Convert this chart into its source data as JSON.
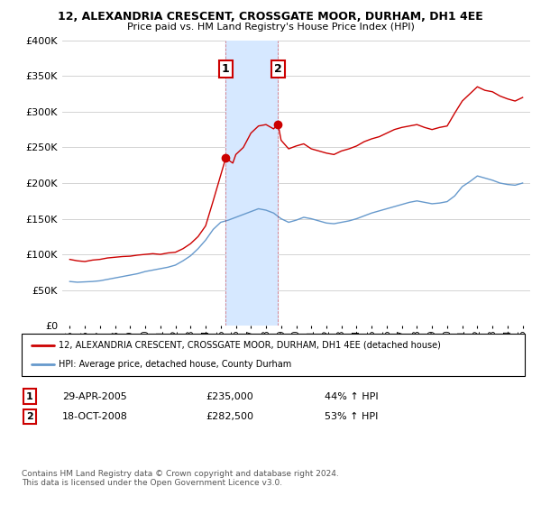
{
  "title": "12, ALEXANDRIA CRESCENT, CROSSGATE MOOR, DURHAM, DH1 4EE",
  "subtitle": "Price paid vs. HM Land Registry's House Price Index (HPI)",
  "legend_line1": "12, ALEXANDRIA CRESCENT, CROSSGATE MOOR, DURHAM, DH1 4EE (detached house)",
  "legend_line2": "HPI: Average price, detached house, County Durham",
  "annotation1_label": "1",
  "annotation1_date": "29-APR-2005",
  "annotation1_price": "£235,000",
  "annotation1_hpi": "44% ↑ HPI",
  "annotation2_label": "2",
  "annotation2_date": "18-OCT-2008",
  "annotation2_price": "£282,500",
  "annotation2_hpi": "53% ↑ HPI",
  "footer": "Contains HM Land Registry data © Crown copyright and database right 2024.\nThis data is licensed under the Open Government Licence v3.0.",
  "red_color": "#cc0000",
  "blue_color": "#6699cc",
  "shade_color": "#d6e8ff",
  "grid_color": "#cccccc",
  "ylim": [
    0,
    400000
  ],
  "yticks": [
    0,
    50000,
    100000,
    150000,
    200000,
    250000,
    300000,
    350000,
    400000
  ],
  "sale1_x": 2005.33,
  "sale1_y": 235000,
  "sale2_x": 2008.8,
  "sale2_y": 282500,
  "hpi_red_data": {
    "x": [
      1995,
      1995.5,
      1996,
      1996.5,
      1997,
      1997.5,
      1998,
      1998.5,
      1999,
      1999.5,
      2000,
      2000.5,
      2001,
      2001.5,
      2002,
      2002.5,
      2003,
      2003.5,
      2004,
      2004.5,
      2005.33,
      2005.8,
      2006,
      2006.5,
      2007,
      2007.5,
      2008,
      2008.5,
      2008.8,
      2009,
      2009.5,
      2010,
      2010.5,
      2011,
      2011.5,
      2012,
      2012.5,
      2013,
      2013.5,
      2014,
      2014.5,
      2015,
      2015.5,
      2016,
      2016.5,
      2017,
      2017.5,
      2018,
      2018.5,
      2019,
      2019.5,
      2020,
      2020.5,
      2021,
      2021.5,
      2022,
      2022.5,
      2023,
      2023.5,
      2024,
      2024.5,
      2025
    ],
    "y": [
      93000,
      91000,
      90000,
      92000,
      93000,
      95000,
      96000,
      97000,
      97500,
      99000,
      100000,
      101000,
      100000,
      102000,
      103000,
      108000,
      115000,
      125000,
      140000,
      175000,
      235000,
      228000,
      240000,
      250000,
      270000,
      280000,
      282000,
      276000,
      282500,
      260000,
      248000,
      252000,
      255000,
      248000,
      245000,
      242000,
      240000,
      245000,
      248000,
      252000,
      258000,
      262000,
      265000,
      270000,
      275000,
      278000,
      280000,
      282000,
      278000,
      275000,
      278000,
      280000,
      298000,
      315000,
      325000,
      335000,
      330000,
      328000,
      322000,
      318000,
      315000,
      320000
    ]
  },
  "hpi_blue_data": {
    "x": [
      1995,
      1995.5,
      1996,
      1996.5,
      1997,
      1997.5,
      1998,
      1998.5,
      1999,
      1999.5,
      2000,
      2000.5,
      2001,
      2001.5,
      2002,
      2002.5,
      2003,
      2003.5,
      2004,
      2004.5,
      2005,
      2005.5,
      2006,
      2006.5,
      2007,
      2007.5,
      2008,
      2008.5,
      2009,
      2009.5,
      2010,
      2010.5,
      2011,
      2011.5,
      2012,
      2012.5,
      2013,
      2013.5,
      2014,
      2014.5,
      2015,
      2015.5,
      2016,
      2016.5,
      2017,
      2017.5,
      2018,
      2018.5,
      2019,
      2019.5,
      2020,
      2020.5,
      2021,
      2021.5,
      2022,
      2022.5,
      2023,
      2023.5,
      2024,
      2024.5,
      2025
    ],
    "y": [
      62000,
      61000,
      61500,
      62000,
      63000,
      65000,
      67000,
      69000,
      71000,
      73000,
      76000,
      78000,
      80000,
      82000,
      85000,
      91000,
      98000,
      108000,
      120000,
      135000,
      145000,
      148000,
      152000,
      156000,
      160000,
      164000,
      162000,
      158000,
      150000,
      145000,
      148000,
      152000,
      150000,
      147000,
      144000,
      143000,
      145000,
      147000,
      150000,
      154000,
      158000,
      161000,
      164000,
      167000,
      170000,
      173000,
      175000,
      173000,
      171000,
      172000,
      174000,
      182000,
      195000,
      202000,
      210000,
      207000,
      204000,
      200000,
      198000,
      197000,
      200000
    ]
  },
  "xticks": [
    1995,
    1996,
    1997,
    1998,
    1999,
    2000,
    2001,
    2002,
    2003,
    2004,
    2005,
    2006,
    2007,
    2008,
    2009,
    2010,
    2011,
    2012,
    2013,
    2014,
    2015,
    2016,
    2017,
    2018,
    2019,
    2020,
    2021,
    2022,
    2023,
    2024,
    2025
  ],
  "xlim": [
    1994.5,
    2025.5
  ]
}
